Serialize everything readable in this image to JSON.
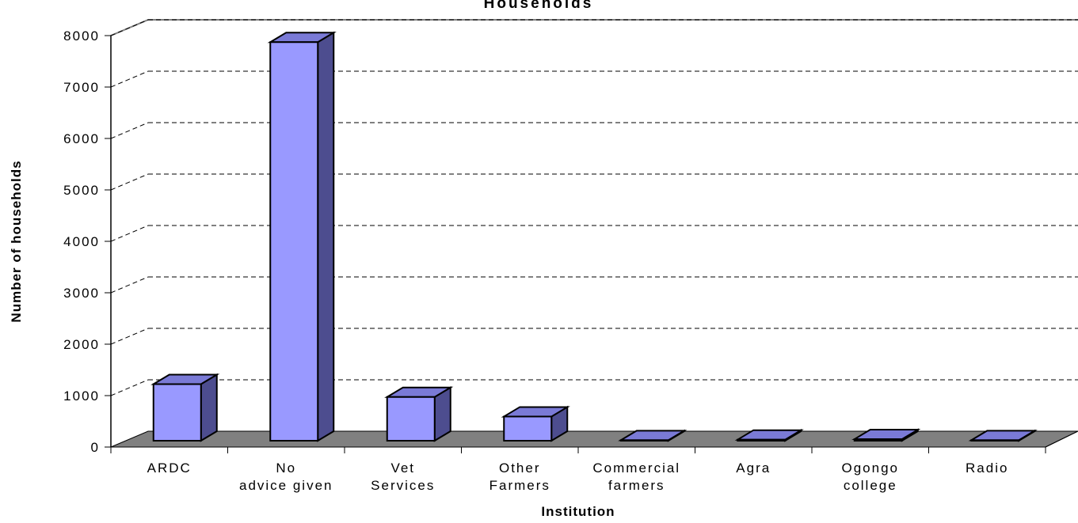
{
  "chart_data": {
    "type": "bar3d",
    "title": "Households",
    "x_label": "Institution",
    "y_label": "Number of households",
    "categories": [
      "ARDC",
      "No advice given",
      "Vet Services",
      "Other Farmers",
      "Commercial farmers",
      "Agra",
      "Ogongo college",
      "Radio"
    ],
    "values": [
      1100,
      7750,
      850,
      470,
      10,
      20,
      30,
      10
    ],
    "color": "#9999ff",
    "ylim": [
      0,
      8000
    ],
    "yticks": [
      0,
      1000,
      2000,
      3000,
      4000,
      5000,
      6000,
      7000,
      8000
    ],
    "grid": true
  }
}
